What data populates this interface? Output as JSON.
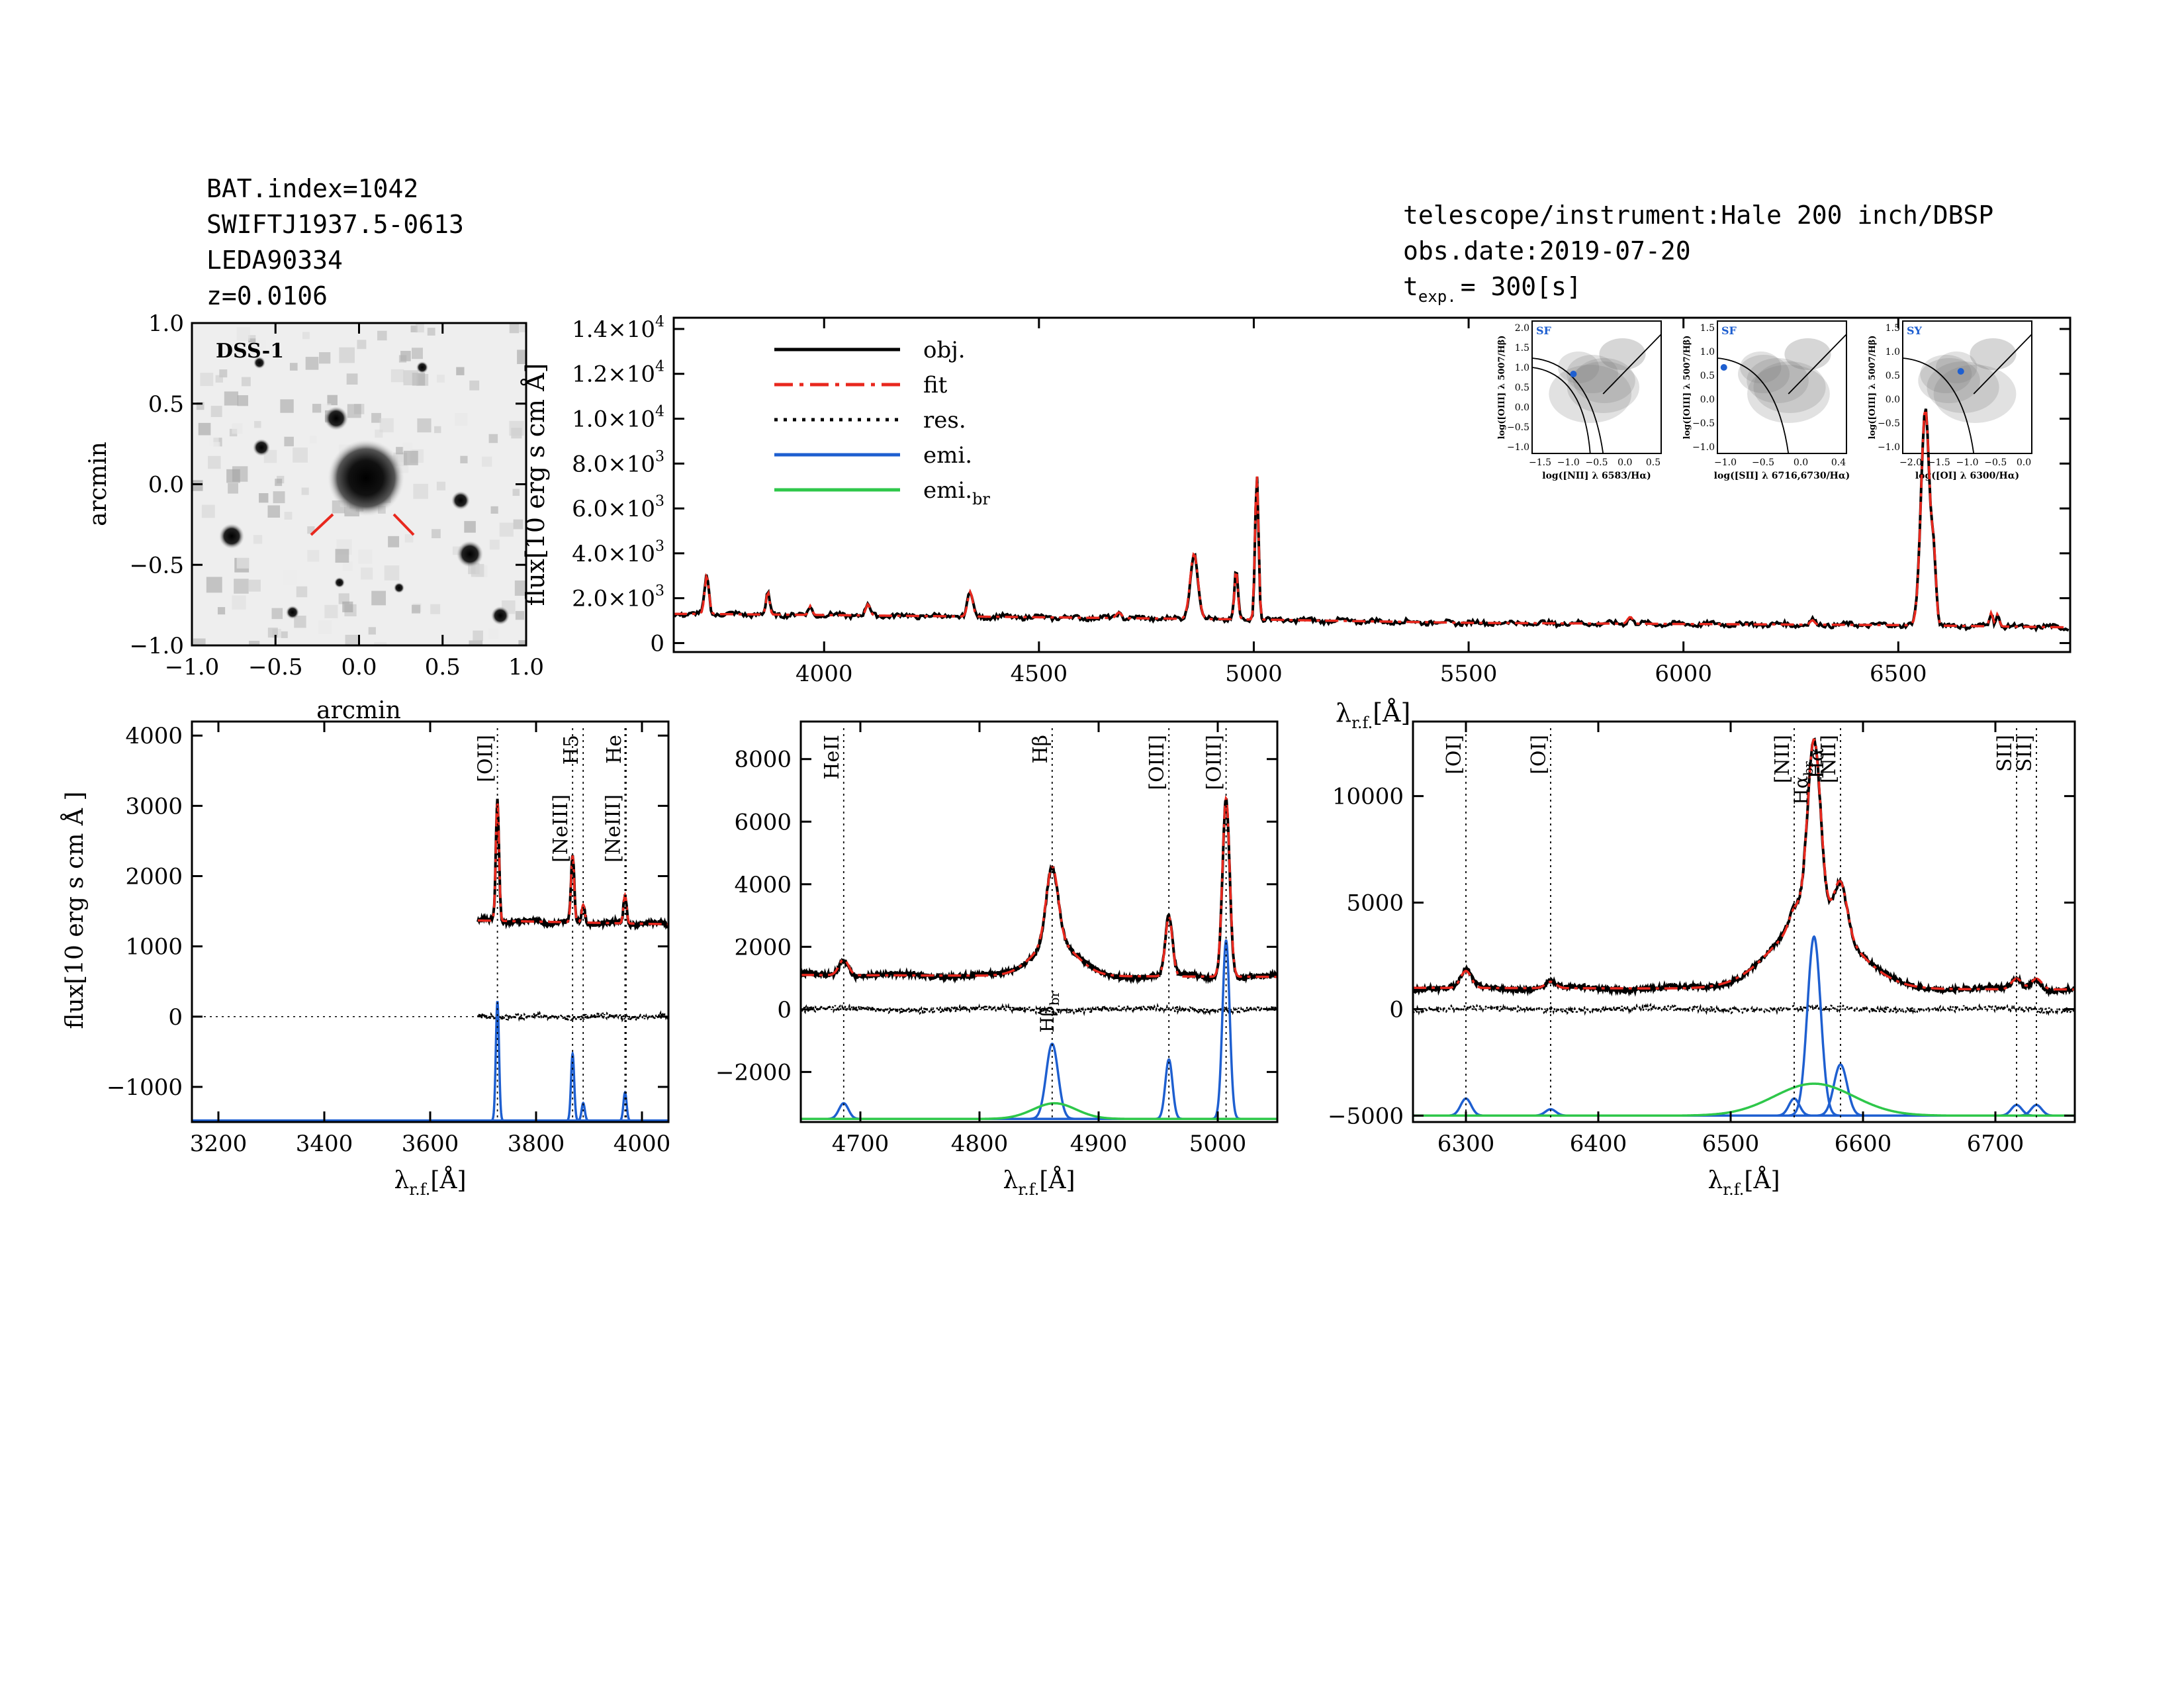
{
  "header": {
    "left": [
      "BAT.index=1042",
      "SWIFTJ1937.5-0613",
      "LEDA90334",
      "z=0.0106"
    ],
    "right_instrument": "telescope/instrument:Hale 200 inch/DBSP",
    "right_date": "obs.date:2019-07-20",
    "right_texp_prefix": "t",
    "right_texp_sub": "exp.",
    "right_texp_value": "= 300[s]"
  },
  "colors": {
    "obj": "#000000",
    "fit": "#e8281e",
    "res": "#000000",
    "emi": "#1e5fd0",
    "emi_br": "#2ec74a",
    "grid_gray": "#888888"
  },
  "image_panel": {
    "label": "DSS-1",
    "xlabel": "arcmin",
    "ylabel": "arcmin",
    "ticks": [
      "−1.0",
      "−0.5",
      "0.0",
      "0.5",
      "1.0"
    ],
    "tick_values": [
      -1.0,
      -0.5,
      0.0,
      0.5,
      1.0
    ],
    "range": [
      -1.0,
      1.0
    ]
  },
  "chart_data": [
    {
      "id": "main",
      "type": "line",
      "title": "",
      "xlabel_main": "λ",
      "xlabel_sub": "r.f.",
      "xlabel_unit": "[Å]",
      "ylabel": "flux[10 erg s cm Å]",
      "xlim": [
        3650,
        6900
      ],
      "ylim": [
        -400,
        14500
      ],
      "xticks": [
        4000,
        4500,
        5000,
        5500,
        6000,
        6500
      ],
      "yticks": [
        0,
        2000,
        4000,
        6000,
        8000,
        10000,
        12000,
        14000
      ],
      "ytick_mantissa": [
        "0",
        "2.0×10",
        "4.0×10",
        "6.0×10",
        "8.0×10",
        "1.0×10",
        "1.2×10",
        "1.4×10"
      ],
      "ytick_exp": [
        "",
        "3",
        "3",
        "3",
        "3",
        "4",
        "4",
        "4"
      ],
      "legend": [
        "obj.",
        "fit",
        "res.",
        "emi.",
        "emi.br"
      ],
      "legend_labels": {
        "obj": "obj.",
        "fit": "fit",
        "res": "res.",
        "emi": "emi.",
        "emi_br_main": "emi.",
        "emi_br_sub": "br"
      },
      "continuum": [
        [
          3700,
          1300
        ],
        [
          4000,
          1250
        ],
        [
          4500,
          1150
        ],
        [
          5000,
          1050
        ],
        [
          5500,
          900
        ],
        [
          6000,
          850
        ],
        [
          6500,
          800
        ],
        [
          6900,
          700
        ]
      ],
      "lines": [
        {
          "c": 3727,
          "a": 1700,
          "w": 5
        },
        {
          "c": 3869,
          "a": 1000,
          "w": 4
        },
        {
          "c": 3968,
          "a": 400,
          "w": 4
        },
        {
          "c": 4102,
          "a": 500,
          "w": 5
        },
        {
          "c": 4340,
          "a": 1100,
          "w": 6
        },
        {
          "c": 4686,
          "a": 250,
          "w": 6
        },
        {
          "c": 4861,
          "a": 2900,
          "w": 9
        },
        {
          "c": 4959,
          "a": 2200,
          "w": 4
        },
        {
          "c": 5007,
          "a": 6500,
          "w": 4
        },
        {
          "c": 5876,
          "a": 300,
          "w": 6
        },
        {
          "c": 6300,
          "a": 200,
          "w": 5
        },
        {
          "c": 6563,
          "a": 9700,
          "w": 10
        },
        {
          "c": 6583,
          "a": 2500,
          "w": 5
        },
        {
          "c": 6716,
          "a": 600,
          "w": 4
        },
        {
          "c": 6731,
          "a": 550,
          "w": 4
        }
      ]
    },
    {
      "id": "oii",
      "type": "line",
      "xlim": [
        3150,
        4050
      ],
      "ylim": [
        -1500,
        4200
      ],
      "xticks": [
        3200,
        3400,
        3600,
        3800,
        4000
      ],
      "yticks": [
        -1000,
        0,
        1000,
        2000,
        3000,
        4000
      ],
      "ytick_labels": [
        "−1000",
        "0",
        "1000",
        "2000",
        "3000",
        "4000"
      ],
      "xlabel_main": "λ",
      "xlabel_sub": "r.f.",
      "xlabel_unit": "[Å]",
      "ylabel": "flux[10 erg s cm Å ]",
      "data_start": 3690,
      "continuum": 1450,
      "emi_base": -1480,
      "annotations": [
        {
          "x": 3727,
          "label": "[OII]"
        },
        {
          "x": 3869,
          "label": "[NeIII]"
        },
        {
          "x": 3889,
          "label": "H5"
        },
        {
          "x": 3968,
          "label": "[NeIII]"
        },
        {
          "x": 3970,
          "label": "He"
        }
      ],
      "lines": [
        {
          "c": 3727,
          "a": 1700,
          "w": 3
        },
        {
          "c": 3869,
          "a": 950,
          "w": 3
        },
        {
          "c": 3889,
          "a": 250,
          "w": 3
        },
        {
          "c": 3968,
          "a": 400,
          "w": 3
        }
      ]
    },
    {
      "id": "hb",
      "type": "line",
      "xlim": [
        4650,
        5050
      ],
      "ylim": [
        -3600,
        9200
      ],
      "xticks": [
        4700,
        4800,
        4900,
        5000
      ],
      "yticks": [
        -2000,
        0,
        2000,
        4000,
        6000,
        8000
      ],
      "ytick_labels": [
        "−2000",
        "0",
        "2000",
        "4000",
        "6000",
        "8000"
      ],
      "xlabel_main": "λ",
      "xlabel_sub": "r.f.",
      "xlabel_unit": "[Å]",
      "continuum": 1100,
      "emi_base": -3500,
      "annotations": [
        {
          "x": 4686,
          "label": "HeII"
        },
        {
          "x": 4861,
          "label": "Hβ"
        },
        {
          "x": 4959,
          "label": "[OIII]"
        },
        {
          "x": 5007,
          "label": "[OIII]"
        }
      ],
      "br_label": "Hβbr",
      "br_label_main": "Hβ",
      "br_label_sub": "br",
      "lines": [
        {
          "c": 4686,
          "a": 500,
          "w": 4
        },
        {
          "c": 4861,
          "a": 2400,
          "w": 5
        },
        {
          "c": 4959,
          "a": 1900,
          "w": 3
        },
        {
          "c": 5007,
          "a": 5700,
          "w": 3
        }
      ],
      "broad": {
        "c": 4863,
        "a": 500,
        "w": 18
      }
    },
    {
      "id": "ha",
      "type": "line",
      "xlim": [
        6260,
        6760
      ],
      "ylim": [
        -5300,
        13500
      ],
      "xticks": [
        6300,
        6400,
        6500,
        6600,
        6700
      ],
      "yticks": [
        -5000,
        0,
        5000,
        10000
      ],
      "ytick_labels": [
        "−5000",
        "0",
        "5000",
        "10000"
      ],
      "xlabel_main": "λ",
      "xlabel_sub": "r.f.",
      "xlabel_unit": "[Å]",
      "continuum": 1000,
      "emi_base": -5000,
      "annotations": [
        {
          "x": 6300,
          "label": "[OI]"
        },
        {
          "x": 6364,
          "label": "[OI]"
        },
        {
          "x": 6548,
          "label": "[NII]"
        },
        {
          "x": 6583,
          "label": "[NII]"
        },
        {
          "x": 6716,
          "label": "SII]"
        },
        {
          "x": 6731,
          "label": "SII]"
        }
      ],
      "ha_label": "Hα",
      "ha_br_label": "Hαbr",
      "ha_br_main": "Hα",
      "ha_br_sub": "br",
      "lines": [
        {
          "c": 6300,
          "a": 800,
          "w": 4
        },
        {
          "c": 6364,
          "a": 300,
          "w": 4
        },
        {
          "c": 6548,
          "a": 800,
          "w": 4
        },
        {
          "c": 6563,
          "a": 8400,
          "w": 5
        },
        {
          "c": 6583,
          "a": 2400,
          "w": 5
        },
        {
          "c": 6716,
          "a": 500,
          "w": 4
        },
        {
          "c": 6731,
          "a": 500,
          "w": 4
        }
      ],
      "broad": {
        "c": 6563,
        "a": 1500,
        "w": 30
      }
    }
  ],
  "bpt": [
    {
      "tag": "SF",
      "xlabel": "log([NII] λ 6583/Hα)",
      "ylabel": "log([OIII] λ 5007/Hβ)",
      "xticks": [
        "−1.5",
        "−1.0",
        "−0.5",
        "0.0",
        "0.5"
      ],
      "yticks": [
        "−1.0",
        "−0.5",
        "0.0",
        "0.5",
        "1.0",
        "1.5",
        "2.0"
      ]
    },
    {
      "tag": "SF",
      "xlabel": "log([SII] λ 6716,6730/Hα)",
      "ylabel": "log([OIII] λ 5007/Hβ)",
      "xticks": [
        "−1.0",
        "−0.5",
        "0.0",
        "0.4"
      ],
      "yticks": [
        "−1.0",
        "−0.5",
        "0.0",
        "0.5",
        "1.0",
        "1.5"
      ]
    },
    {
      "tag": "SY",
      "xlabel": "log([OI] λ 6300/Hα)",
      "ylabel": "log([OIII] λ 5007/Hβ)",
      "xticks": [
        "−2.0",
        "−1.5",
        "−1.0",
        "−0.5",
        "0.0"
      ],
      "yticks": [
        "−1.0",
        "−0.5",
        "0.0",
        "0.5",
        "1.0",
        "1.5"
      ]
    }
  ]
}
